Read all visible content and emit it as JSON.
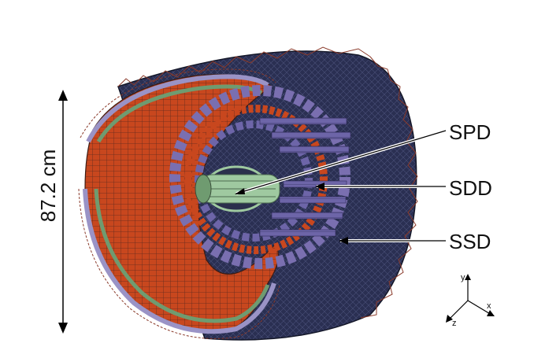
{
  "labels": {
    "spd": "SPD",
    "sdd": "SDD",
    "ssd": "SSD",
    "dimension": "87.2 cm"
  },
  "axes": {
    "x": "x",
    "y": "y",
    "z": "z"
  },
  "colors": {
    "outer_frame": "#1f2440",
    "frame_truss": "#8a3a2a",
    "ssd_layer": "#c8471e",
    "ssd_edge": "#5d2a1f",
    "sdd_layer": "#7a6fb0",
    "spd_layer": "#9fc9a0",
    "green_band": "#6f9b70",
    "lavender_band": "#9a93c6",
    "arrow": "#000000"
  }
}
